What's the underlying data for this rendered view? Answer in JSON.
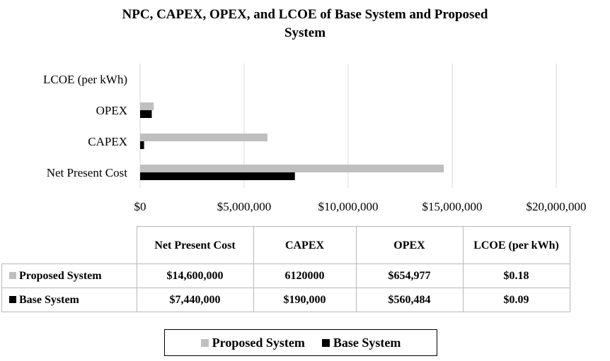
{
  "chart_data": {
    "type": "bar",
    "orientation": "horizontal",
    "title": "NPC, CAPEX, OPEX, and LCOE of Base System and Proposed System",
    "title_lines": [
      "NPC, CAPEX, OPEX, and LCOE of Base System and Proposed",
      "System"
    ],
    "categories": [
      "Net Present Cost",
      "CAPEX",
      "OPEX",
      "LCOE (per kWh)"
    ],
    "series": [
      {
        "name": "Proposed System",
        "color": "#bfbfbf",
        "values": [
          14600000,
          6120000,
          654977,
          0.18
        ]
      },
      {
        "name": "Base System",
        "color": "#000000",
        "values": [
          7440000,
          190000,
          560484,
          0.09
        ]
      }
    ],
    "x_ticks": [
      "$0",
      "$5,000,000",
      "$10,000,000",
      "$15,000,000",
      "$20,000,000"
    ],
    "xlim": [
      0,
      20000000
    ],
    "grid": true,
    "legend_position": "bottom",
    "data_table": {
      "headers": [
        "Net Present Cost",
        "CAPEX",
        "OPEX",
        "LCOE (per kWh)"
      ],
      "rows": [
        {
          "label": "Proposed System",
          "color": "#bfbfbf",
          "cells": [
            "$14,600,000",
            "6120000",
            "$654,977",
            "$0.18"
          ]
        },
        {
          "label": "Base System",
          "color": "#000000",
          "cells": [
            "$7,440,000",
            "$190,000",
            "$560,484",
            "$0.09"
          ]
        }
      ]
    }
  }
}
